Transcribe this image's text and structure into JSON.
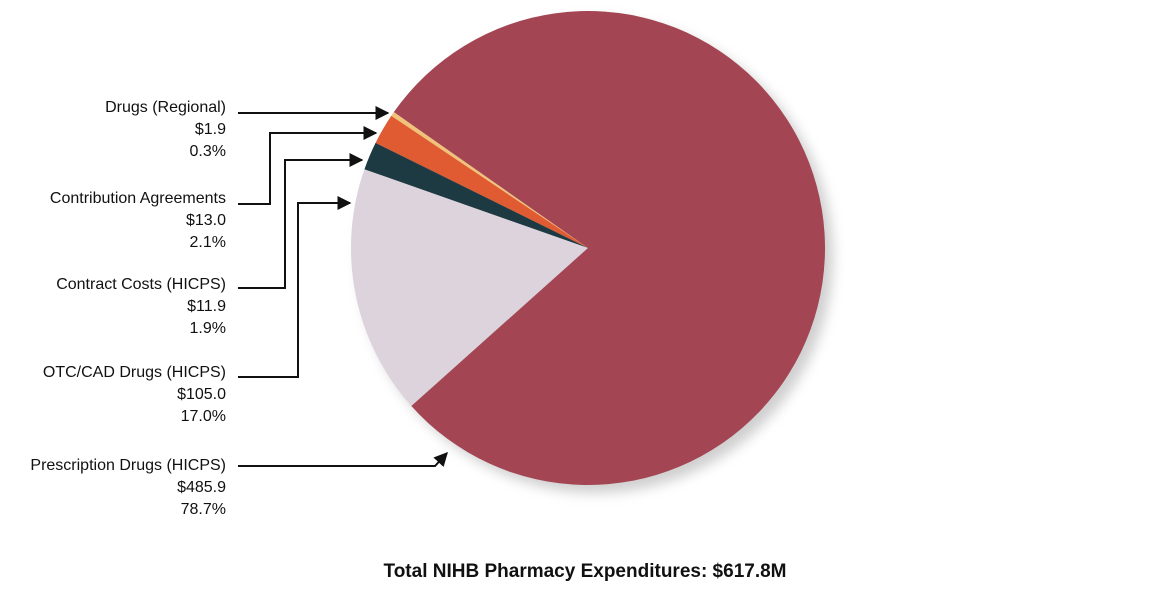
{
  "chart_data": {
    "type": "pie",
    "title": "Total NIHB Pharmacy Expenditures: $617.8M",
    "categories": [
      "Drugs (Regional)",
      "Contribution Agreements",
      "Contract Costs (HICPS)",
      "OTC/CAD Drugs (HICPS)",
      "Prescription Drugs (HICPS)"
    ],
    "values": [
      1.9,
      13.0,
      11.9,
      105.0,
      485.9
    ],
    "value_labels": [
      "$1.9",
      "$13.0",
      "$11.9",
      "$105.0",
      "$485.9"
    ],
    "percent_labels": [
      "0.3%",
      "2.1%",
      "1.9%",
      "17.0%",
      "78.7%"
    ],
    "colors": [
      "#f0c27a",
      "#e05a32",
      "#1d3a42",
      "#dcd3dc",
      "#a34552"
    ]
  }
}
